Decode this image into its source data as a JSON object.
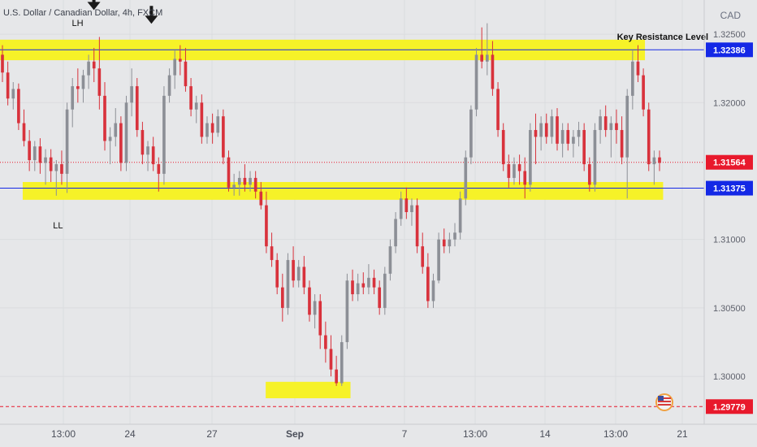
{
  "header": {
    "title": "U.S. Dollar / Canadian Dollar, 4h, FXCM",
    "currency": "CAD"
  },
  "chart_data": {
    "type": "candlestick",
    "title": "U.S. Dollar / Canadian Dollar, 4h, FXCM",
    "ylim": [
      1.2965,
      1.3275
    ],
    "yticks": [
      "1.32500",
      "1.32000",
      "1.31000",
      "1.30500",
      "1.30000"
    ],
    "xticks": [
      "13:00",
      "24",
      "27",
      "Sep",
      "7",
      "13:00",
      "14",
      "13:00",
      "21"
    ],
    "price_labels": [
      {
        "value": 1.32386,
        "text": "1.32386",
        "color": "#1428e6"
      },
      {
        "value": 1.31564,
        "text": "1.31564",
        "color": "#e8192c"
      },
      {
        "value": 1.31375,
        "text": "1.31375",
        "color": "#1428e6"
      },
      {
        "value": 1.29779,
        "text": "1.29779",
        "color": "#e8192c"
      }
    ],
    "horizontal_lines": [
      {
        "value": 1.32386,
        "color": "#1428e6",
        "style": "solid"
      },
      {
        "value": 1.31375,
        "color": "#1428e6",
        "style": "solid"
      },
      {
        "value": 1.31564,
        "color": "#e8192c",
        "style": "dotted"
      },
      {
        "value": 1.29779,
        "color": "#e8192c",
        "style": "dashed"
      }
    ],
    "zones": [
      {
        "from": 1.3231,
        "to": 1.3246,
        "x_start": 0,
        "x_end": 0.852,
        "color": "#f7f21e"
      },
      {
        "from": 1.3129,
        "to": 1.3142,
        "x_start": 0.03,
        "x_end": 0.876,
        "color": "#f7f21e"
      },
      {
        "from": 1.2984,
        "to": 1.2996,
        "x_start": 0.351,
        "x_end": 0.463,
        "color": "#f7f21e"
      }
    ],
    "annotations": [
      {
        "text": "LH",
        "x_frac": 0.095,
        "value": 1.3256
      },
      {
        "text": "LL",
        "x_frac": 0.07,
        "value": 1.3108
      },
      {
        "text": "Key Resistance Level",
        "x_frac": 0.815,
        "value": 1.3246
      }
    ],
    "arrows": [
      {
        "x_frac": 0.124,
        "value": 1.327
      },
      {
        "x_frac": 0.2,
        "value": 1.326
      }
    ],
    "candles": [
      [
        1.3235,
        1.3242,
        1.3215,
        1.3222
      ],
      [
        1.3222,
        1.323,
        1.3198,
        1.3203
      ],
      [
        1.3203,
        1.3215,
        1.3195,
        1.321
      ],
      [
        1.321,
        1.3214,
        1.318,
        1.3185
      ],
      [
        1.3185,
        1.3195,
        1.3168,
        1.3172
      ],
      [
        1.3172,
        1.318,
        1.315,
        1.3158
      ],
      [
        1.3158,
        1.3172,
        1.315,
        1.3168
      ],
      [
        1.3168,
        1.3174,
        1.3148,
        1.3156
      ],
      [
        1.3156,
        1.3166,
        1.314,
        1.316
      ],
      [
        1.316,
        1.3166,
        1.3142,
        1.315
      ],
      [
        1.315,
        1.3158,
        1.3132,
        1.3155
      ],
      [
        1.3155,
        1.3165,
        1.314,
        1.3148
      ],
      [
        1.3148,
        1.32,
        1.3134,
        1.3195
      ],
      [
        1.3195,
        1.3218,
        1.3182,
        1.3212
      ],
      [
        1.3212,
        1.3225,
        1.32,
        1.321
      ],
      [
        1.321,
        1.3224,
        1.32,
        1.322
      ],
      [
        1.322,
        1.3235,
        1.321,
        1.323
      ],
      [
        1.323,
        1.324,
        1.3215,
        1.3225
      ],
      [
        1.3225,
        1.3248,
        1.3195,
        1.3205
      ],
      [
        1.3205,
        1.3215,
        1.3165,
        1.3172
      ],
      [
        1.3172,
        1.3182,
        1.3155,
        1.3175
      ],
      [
        1.3175,
        1.3196,
        1.3168,
        1.3185
      ],
      [
        1.3185,
        1.319,
        1.315,
        1.3156
      ],
      [
        1.3156,
        1.3205,
        1.315,
        1.32
      ],
      [
        1.32,
        1.3225,
        1.319,
        1.3212
      ],
      [
        1.3212,
        1.3218,
        1.3175,
        1.318
      ],
      [
        1.318,
        1.3186,
        1.3155,
        1.3162
      ],
      [
        1.3162,
        1.3172,
        1.315,
        1.3168
      ],
      [
        1.3168,
        1.3175,
        1.315,
        1.3155
      ],
      [
        1.3155,
        1.316,
        1.3135,
        1.3148
      ],
      [
        1.3148,
        1.3212,
        1.314,
        1.3205
      ],
      [
        1.3205,
        1.3225,
        1.32,
        1.322
      ],
      [
        1.322,
        1.3238,
        1.321,
        1.3232
      ],
      [
        1.3232,
        1.3242,
        1.322,
        1.323
      ],
      [
        1.323,
        1.324,
        1.3208,
        1.3212
      ],
      [
        1.3212,
        1.3218,
        1.319,
        1.3195
      ],
      [
        1.3195,
        1.3205,
        1.3185,
        1.32
      ],
      [
        1.32,
        1.3206,
        1.317,
        1.3175
      ],
      [
        1.3175,
        1.319,
        1.317,
        1.3185
      ],
      [
        1.3185,
        1.3192,
        1.317,
        1.3178
      ],
      [
        1.3178,
        1.3195,
        1.3175,
        1.319
      ],
      [
        1.319,
        1.3195,
        1.3155,
        1.316
      ],
      [
        1.316,
        1.3165,
        1.3135,
        1.3138
      ],
      [
        1.3138,
        1.3148,
        1.3132,
        1.314
      ],
      [
        1.314,
        1.315,
        1.3132,
        1.3145
      ],
      [
        1.3145,
        1.3155,
        1.3135,
        1.314
      ],
      [
        1.314,
        1.315,
        1.3135,
        1.3145
      ],
      [
        1.3145,
        1.315,
        1.313,
        1.3135
      ],
      [
        1.3135,
        1.3142,
        1.3122,
        1.3125
      ],
      [
        1.3125,
        1.3135,
        1.309,
        1.3095
      ],
      [
        1.3095,
        1.3105,
        1.308,
        1.3085
      ],
      [
        1.3085,
        1.309,
        1.306,
        1.3065
      ],
      [
        1.3065,
        1.3075,
        1.304,
        1.305
      ],
      [
        1.305,
        1.309,
        1.3045,
        1.3085
      ],
      [
        1.3085,
        1.3095,
        1.3065,
        1.307
      ],
      [
        1.307,
        1.3085,
        1.3065,
        1.308
      ],
      [
        1.308,
        1.3088,
        1.306,
        1.3065
      ],
      [
        1.3065,
        1.307,
        1.304,
        1.3045
      ],
      [
        1.3045,
        1.306,
        1.3035,
        1.3055
      ],
      [
        1.3055,
        1.306,
        1.302,
        1.303
      ],
      [
        1.303,
        1.304,
        1.301,
        1.302
      ],
      [
        1.302,
        1.303,
        1.3,
        1.3005
      ],
      [
        1.3005,
        1.3015,
        1.2993,
        1.2995
      ],
      [
        1.2995,
        1.303,
        1.2993,
        1.3025
      ],
      [
        1.3025,
        1.3075,
        1.302,
        1.307
      ],
      [
        1.307,
        1.3078,
        1.3055,
        1.306
      ],
      [
        1.306,
        1.3075,
        1.3055,
        1.3068
      ],
      [
        1.3068,
        1.3076,
        1.306,
        1.3065
      ],
      [
        1.3065,
        1.3082,
        1.306,
        1.3072
      ],
      [
        1.3072,
        1.3078,
        1.306,
        1.3065
      ],
      [
        1.3065,
        1.307,
        1.3045,
        1.305
      ],
      [
        1.305,
        1.308,
        1.3045,
        1.3075
      ],
      [
        1.3075,
        1.31,
        1.307,
        1.3095
      ],
      [
        1.3095,
        1.312,
        1.309,
        1.3115
      ],
      [
        1.3115,
        1.3135,
        1.311,
        1.313
      ],
      [
        1.313,
        1.3138,
        1.3115,
        1.312
      ],
      [
        1.312,
        1.313,
        1.311,
        1.3125
      ],
      [
        1.3125,
        1.313,
        1.309,
        1.3095
      ],
      [
        1.3095,
        1.3105,
        1.3075,
        1.308
      ],
      [
        1.308,
        1.309,
        1.305,
        1.3055
      ],
      [
        1.3055,
        1.3075,
        1.305,
        1.307
      ],
      [
        1.307,
        1.3105,
        1.3068,
        1.31
      ],
      [
        1.31,
        1.3108,
        1.309,
        1.3095
      ],
      [
        1.3095,
        1.3105,
        1.309,
        1.31
      ],
      [
        1.31,
        1.3112,
        1.3095,
        1.3105
      ],
      [
        1.3105,
        1.3135,
        1.31,
        1.313
      ],
      [
        1.313,
        1.3165,
        1.3125,
        1.316
      ],
      [
        1.316,
        1.3198,
        1.3155,
        1.3195
      ],
      [
        1.3195,
        1.324,
        1.319,
        1.3235
      ],
      [
        1.3235,
        1.3255,
        1.3225,
        1.323
      ],
      [
        1.323,
        1.3258,
        1.322,
        1.3235
      ],
      [
        1.3235,
        1.3245,
        1.3205,
        1.321
      ],
      [
        1.321,
        1.3215,
        1.3175,
        1.318
      ],
      [
        1.318,
        1.3185,
        1.315,
        1.3155
      ],
      [
        1.3155,
        1.3162,
        1.3138,
        1.3145
      ],
      [
        1.3145,
        1.316,
        1.314,
        1.3155
      ],
      [
        1.3155,
        1.3162,
        1.314,
        1.315
      ],
      [
        1.315,
        1.316,
        1.313,
        1.314
      ],
      [
        1.314,
        1.3185,
        1.3135,
        1.318
      ],
      [
        1.318,
        1.3192,
        1.3155,
        1.3175
      ],
      [
        1.3175,
        1.319,
        1.3165,
        1.3185
      ],
      [
        1.3185,
        1.3192,
        1.317,
        1.3175
      ],
      [
        1.3175,
        1.3195,
        1.317,
        1.319
      ],
      [
        1.319,
        1.3196,
        1.3165,
        1.317
      ],
      [
        1.317,
        1.3185,
        1.316,
        1.318
      ],
      [
        1.318,
        1.3185,
        1.3165,
        1.317
      ],
      [
        1.317,
        1.318,
        1.316,
        1.3175
      ],
      [
        1.3175,
        1.3186,
        1.3168,
        1.318
      ],
      [
        1.318,
        1.3185,
        1.315,
        1.3155
      ],
      [
        1.3155,
        1.316,
        1.3135,
        1.314
      ],
      [
        1.314,
        1.3185,
        1.3135,
        1.318
      ],
      [
        1.318,
        1.3195,
        1.317,
        1.319
      ],
      [
        1.319,
        1.3198,
        1.3175,
        1.318
      ],
      [
        1.318,
        1.319,
        1.316,
        1.3185
      ],
      [
        1.3185,
        1.3195,
        1.317,
        1.318
      ],
      [
        1.318,
        1.319,
        1.3155,
        1.316
      ],
      [
        1.316,
        1.321,
        1.313,
        1.3205
      ],
      [
        1.3205,
        1.3238,
        1.3195,
        1.323
      ],
      [
        1.323,
        1.3242,
        1.3215,
        1.322
      ],
      [
        1.322,
        1.3225,
        1.319,
        1.3195
      ],
      [
        1.3195,
        1.32,
        1.315,
        1.3155
      ],
      [
        1.3155,
        1.3165,
        1.314,
        1.316
      ],
      [
        1.316,
        1.3165,
        1.315,
        1.3156
      ]
    ]
  }
}
